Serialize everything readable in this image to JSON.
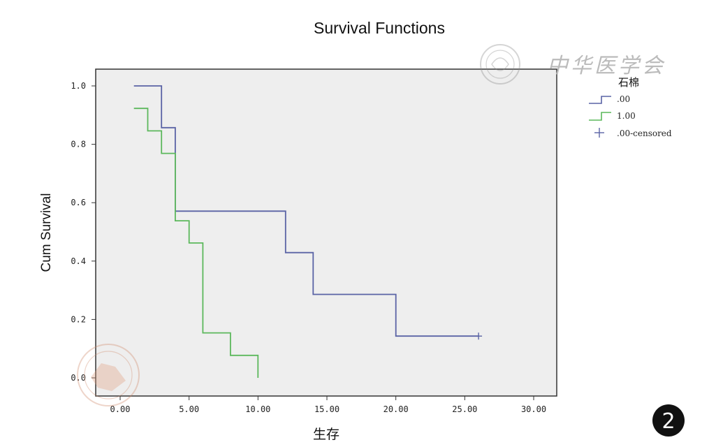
{
  "chart_data": {
    "type": "line",
    "subtype": "kaplan-meier-step",
    "title": "Survival Functions",
    "xlabel": "生存",
    "ylabel": "Cum Survival",
    "xlim": [
      0,
      30
    ],
    "ylim": [
      0,
      1.0
    ],
    "x_ticks": [
      "0.00",
      "5.00",
      "10.00",
      "15.00",
      "20.00",
      "25.00",
      "30.00"
    ],
    "x_tick_values": [
      0,
      5,
      10,
      15,
      20,
      25,
      30
    ],
    "y_ticks": [
      "0.0",
      "0.2",
      "0.4",
      "0.6",
      "0.8",
      "1.0"
    ],
    "y_tick_values": [
      0,
      0.2,
      0.4,
      0.6,
      0.8,
      1.0
    ],
    "grid": false,
    "legend_position": "right",
    "legend_title": "石棉",
    "series": [
      {
        "name": ".00",
        "color": "#5a63a5",
        "points": [
          [
            1,
            1.0
          ],
          [
            3,
            1.0
          ],
          [
            3,
            0.857
          ],
          [
            4,
            0.857
          ],
          [
            4,
            0.571
          ],
          [
            12,
            0.571
          ],
          [
            12,
            0.429
          ],
          [
            14,
            0.429
          ],
          [
            14,
            0.286
          ],
          [
            20,
            0.286
          ],
          [
            20,
            0.143
          ],
          [
            26,
            0.143
          ]
        ]
      },
      {
        "name": "1.00",
        "color": "#5cb85c",
        "points": [
          [
            1,
            0.923
          ],
          [
            2,
            0.923
          ],
          [
            2,
            0.846
          ],
          [
            3,
            0.846
          ],
          [
            3,
            0.769
          ],
          [
            4,
            0.769
          ],
          [
            4,
            0.538
          ],
          [
            5,
            0.538
          ],
          [
            5,
            0.462
          ],
          [
            6,
            0.462
          ],
          [
            6,
            0.154
          ],
          [
            8,
            0.154
          ],
          [
            8,
            0.077
          ],
          [
            10,
            0.077
          ],
          [
            10,
            0.0
          ]
        ]
      }
    ],
    "censored": {
      "name": ".00-censored",
      "color": "#5a63a5",
      "points": [
        [
          26,
          0.143
        ]
      ]
    }
  },
  "badge": {
    "label": "2"
  },
  "watermark": {
    "text": "中华医学会"
  },
  "colors": {
    "plot_background": "#eeeeee",
    "axis": "#333333"
  }
}
